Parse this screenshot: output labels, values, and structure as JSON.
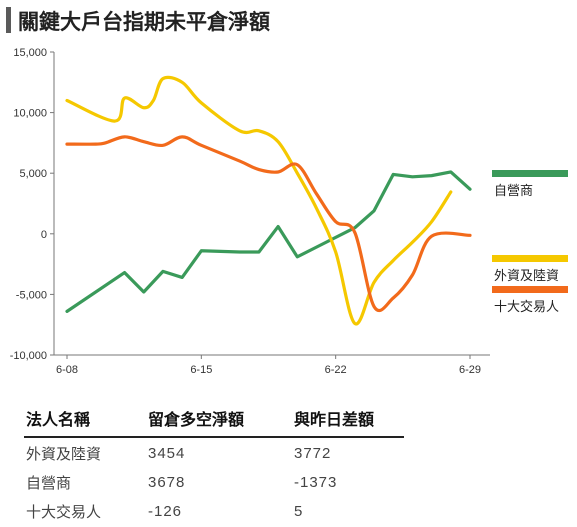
{
  "title": "關鍵大戶台指期未平倉淨額",
  "chart_data": {
    "type": "line",
    "x": [
      "6-08",
      "6-09",
      "6-10",
      "6-11",
      "6-12",
      "6-13",
      "6-14",
      "6-15",
      "6-16",
      "6-17",
      "6-18",
      "6-19",
      "6-20",
      "6-21",
      "6-22",
      "6-23",
      "6-24",
      "6-25",
      "6-26",
      "6-27",
      "6-28",
      "6-29"
    ],
    "x_tick_labels": [
      "6-08",
      "6-15",
      "6-22",
      "6-29"
    ],
    "y_ticks": [
      "15,000",
      "10,000",
      "5,000",
      "0",
      "-5,000",
      "-10,000"
    ],
    "ylim": [
      -10000,
      15000
    ],
    "grid": false,
    "legend_position": "right",
    "series": [
      {
        "name": "自營商",
        "color": "#3a9a5a",
        "points": [
          [
            0,
            -6400
          ],
          [
            3,
            -3200
          ],
          [
            4,
            -4800
          ],
          [
            5,
            -3100
          ],
          [
            6,
            -3600
          ],
          [
            7,
            -1400
          ],
          [
            9,
            -1500
          ],
          [
            10,
            -1500
          ],
          [
            11,
            600
          ],
          [
            12,
            -1900
          ],
          [
            13,
            -1100
          ],
          [
            15,
            500
          ],
          [
            16,
            1900
          ],
          [
            17,
            4900
          ],
          [
            18,
            4700
          ],
          [
            19,
            4800
          ],
          [
            20,
            5100
          ],
          [
            21,
            3678
          ]
        ]
      },
      {
        "name": "外資及陸資",
        "color": "#f5c800",
        "points": [
          [
            0,
            11000
          ],
          [
            2.5,
            9300
          ],
          [
            3,
            11200
          ],
          [
            4,
            10400
          ],
          [
            4.5,
            11000
          ],
          [
            5,
            12800
          ],
          [
            6,
            12500
          ],
          [
            7,
            10800
          ],
          [
            9,
            8500
          ],
          [
            10,
            8500
          ],
          [
            11,
            7600
          ],
          [
            12,
            5000
          ],
          [
            13,
            2100
          ],
          [
            14,
            -1500
          ],
          [
            15,
            -7400
          ],
          [
            16,
            -4000
          ],
          [
            17,
            -2200
          ],
          [
            18,
            -700
          ],
          [
            19,
            1000
          ],
          [
            20,
            3454
          ]
        ]
      },
      {
        "name": "十大交易人",
        "color": "#f26a1b",
        "points": [
          [
            0,
            7400
          ],
          [
            1.5,
            7400
          ],
          [
            2,
            7500
          ],
          [
            3,
            8000
          ],
          [
            4,
            7600
          ],
          [
            5,
            7300
          ],
          [
            6,
            8000
          ],
          [
            7,
            7300
          ],
          [
            9,
            6000
          ],
          [
            10,
            5300
          ],
          [
            11,
            5100
          ],
          [
            12,
            5700
          ],
          [
            13,
            3300
          ],
          [
            14,
            1000
          ],
          [
            15,
            100
          ],
          [
            16,
            -6000
          ],
          [
            17,
            -5300
          ],
          [
            18,
            -3400
          ],
          [
            19,
            -200
          ],
          [
            21,
            -126
          ]
        ]
      }
    ]
  },
  "legend": [
    {
      "label": "自營商",
      "color": "#3a9a5a"
    },
    {
      "label": "外資及陸資",
      "color": "#f5c800"
    },
    {
      "label": "十大交易人",
      "color": "#f26a1b"
    }
  ],
  "table": {
    "headers": [
      "法人名稱",
      "留倉多空淨額",
      "與昨日差額"
    ],
    "rows": [
      [
        "外資及陸資",
        "3454",
        "3772"
      ],
      [
        "自營商",
        "3678",
        "-1373"
      ],
      [
        "十大交易人",
        "-126",
        "5"
      ]
    ]
  }
}
